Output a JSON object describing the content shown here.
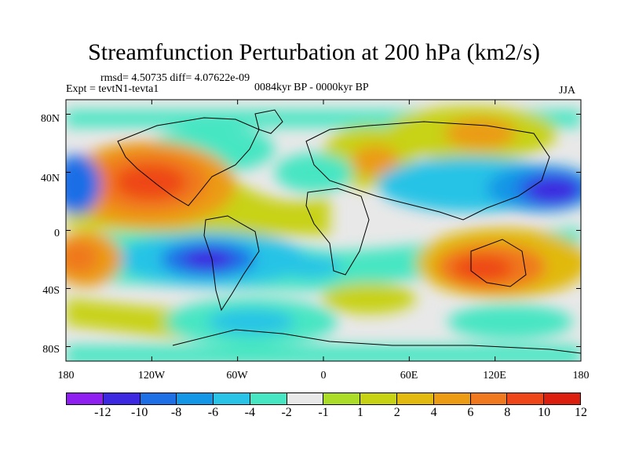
{
  "title": "Streamfunction Perturbation at 200 hPa (km2/s)",
  "stats": "rmsd= 4.50735  diff= 4.07622e-09",
  "expt": "Expt = tevtN1-tevta1",
  "period": "0084kyr BP - 0000kyr BP",
  "season": "JJA",
  "y_axis": {
    "labels": [
      "80N",
      "40N",
      "0",
      "40S",
      "80S"
    ]
  },
  "x_axis": {
    "labels": [
      "180",
      "120W",
      "60W",
      "0",
      "60E",
      "120E",
      "180"
    ]
  },
  "colorbar": {
    "colors": [
      "#8f1ef0",
      "#3c28e0",
      "#1e6ee6",
      "#1496e6",
      "#28c3e6",
      "#46e6c3",
      "#e8e8e8",
      "#aadc28",
      "#c8d214",
      "#e1b90f",
      "#eb9b14",
      "#f0781e",
      "#ee4619",
      "#dc1e0f"
    ],
    "labels": [
      "-12",
      "-10",
      "-8",
      "-6",
      "-4",
      "-2",
      "-1",
      "1",
      "2",
      "4",
      "6",
      "8",
      "10",
      "12"
    ]
  },
  "chart_data": {
    "type": "heatmap",
    "title": "Streamfunction Perturbation at 200 hPa (km2/s)",
    "units": "km2/s",
    "season": "JJA",
    "x_range": [
      -180,
      180
    ],
    "y_range": [
      -90,
      90
    ],
    "levels": [
      -12,
      -10,
      -8,
      -6,
      -4,
      -2,
      -1,
      1,
      2,
      4,
      6,
      8,
      10,
      12
    ],
    "features": [
      {
        "name": "North Pacific / North America high",
        "lon": -115,
        "lat": 32,
        "value": 11
      },
      {
        "name": "Western Pacific low",
        "lon": 160,
        "lat": 30,
        "value": -13
      },
      {
        "name": "South America low",
        "lon": -78,
        "lat": -20,
        "value": -9
      },
      {
        "name": "Australia high",
        "lon": 118,
        "lat": -28,
        "value": 9
      },
      {
        "name": "East Pacific SH high",
        "lon": -170,
        "lat": -18,
        "value": 8
      },
      {
        "name": "Arctic Asia high",
        "lon": 100,
        "lat": 60,
        "value": 7
      },
      {
        "name": "Mid Atlantic high",
        "lon": 30,
        "lat": 45,
        "value": 6
      },
      {
        "name": "Central Asia low",
        "lon": 80,
        "lat": 38,
        "value": -5
      },
      {
        "name": "Western Pacific edge low",
        "lon": -178,
        "lat": 35,
        "value": -9
      }
    ]
  }
}
